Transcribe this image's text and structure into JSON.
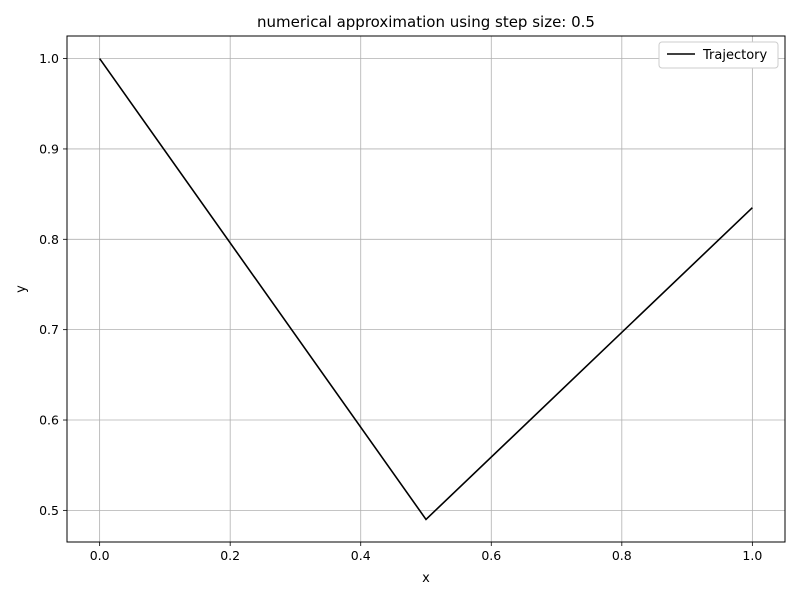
{
  "chart_data": {
    "type": "line",
    "title": "numerical approximation using step size: 0.5",
    "xlabel": "x",
    "ylabel": "y",
    "xlim": [
      -0.05,
      1.05
    ],
    "ylim": [
      0.465,
      1.025
    ],
    "xticks": [
      0.0,
      0.2,
      0.4,
      0.6,
      0.8,
      1.0
    ],
    "xtick_labels": [
      "0.0",
      "0.2",
      "0.4",
      "0.6",
      "0.8",
      "1.0"
    ],
    "yticks": [
      0.5,
      0.6,
      0.7,
      0.8,
      0.9,
      1.0
    ],
    "ytick_labels": [
      "0.5",
      "0.6",
      "0.7",
      "0.8",
      "0.9",
      "1.0"
    ],
    "grid": true,
    "legend_position": "top-right",
    "series": [
      {
        "name": "Trajectory",
        "color": "#000000",
        "x": [
          0.0,
          0.5,
          1.0
        ],
        "y": [
          1.0,
          0.49,
          0.835
        ]
      }
    ]
  }
}
